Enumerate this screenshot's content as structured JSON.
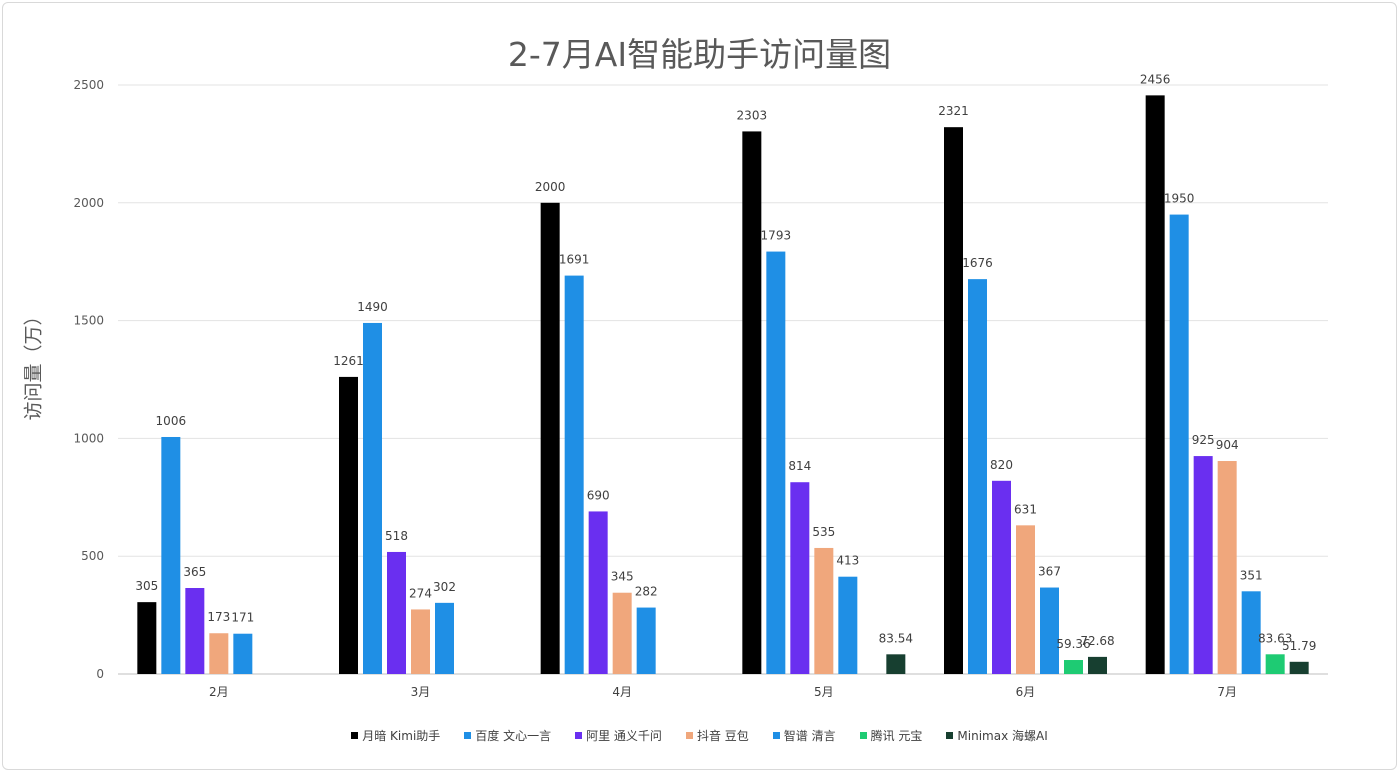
{
  "chart_data": {
    "type": "bar",
    "title": "2-7月AI智能助手访问量图",
    "ylabel": "访问量（万）",
    "xlabel": "",
    "ylim": [
      0,
      2500
    ],
    "yticks": [
      0,
      500,
      1000,
      1500,
      2000,
      2500
    ],
    "grid": true,
    "legend": "bottom",
    "categories": [
      "2月",
      "3月",
      "4月",
      "5月",
      "6月",
      "7月"
    ],
    "series": [
      {
        "name": "月暗 Kimi助手",
        "color": "#000000",
        "values": [
          305,
          1261,
          2000,
          2303,
          2321,
          2456
        ]
      },
      {
        "name": "百度 文心一言",
        "color": "#1f8fe5",
        "values": [
          1006,
          1490,
          1691,
          1793,
          1676,
          1950
        ]
      },
      {
        "name": "阿里 通义千问",
        "color": "#6a2ff0",
        "values": [
          365,
          518,
          690,
          814,
          820,
          925
        ]
      },
      {
        "name": "抖音 豆包",
        "color": "#f0a77c",
        "values": [
          173,
          274,
          345,
          535,
          631,
          904
        ]
      },
      {
        "name": "智谱 清言",
        "color": "#1f8fe5",
        "values": [
          171,
          302,
          282,
          413,
          367,
          351
        ]
      },
      {
        "name": "腾讯 元宝",
        "color": "#1ecb73",
        "values": [
          null,
          null,
          null,
          null,
          59.36,
          83.63
        ]
      },
      {
        "name": "Minimax 海螺AI",
        "color": "#173f30",
        "values": [
          null,
          null,
          null,
          83.54,
          72.68,
          51.79
        ]
      }
    ]
  }
}
